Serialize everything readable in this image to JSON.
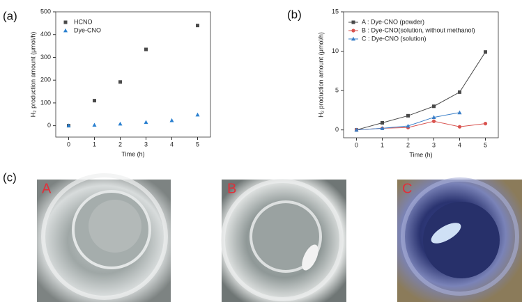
{
  "panel_labels": [
    "(a)",
    "(b)",
    "(c)"
  ],
  "photos": [
    {
      "label": "A"
    },
    {
      "label": "B"
    },
    {
      "label": "C"
    }
  ],
  "chart_data": [
    {
      "type": "scatter",
      "xlabel": "Time (h)",
      "ylabel": "H₂ production amount (μmol/h)",
      "x": [
        0,
        1,
        2,
        3,
        4,
        5
      ],
      "xlim": [
        -0.5,
        5.5
      ],
      "xticks": [
        0,
        1,
        2,
        3,
        4,
        5
      ],
      "ylim": [
        -50,
        500
      ],
      "yticks": [
        0,
        100,
        200,
        300,
        400,
        500
      ],
      "legend": "upper left",
      "series": [
        {
          "name": "HCNO",
          "color": "#4a4a4a",
          "marker": "square",
          "values": [
            0,
            110,
            192,
            335,
            null,
            440
          ]
        },
        {
          "name": "Dye-CNO",
          "color": "#2a80d0",
          "marker": "triangle",
          "values": [
            0,
            3,
            8,
            15,
            23,
            48
          ]
        }
      ]
    },
    {
      "type": "line",
      "xlabel": "Time (h)",
      "ylabel": "H₂ production amount (μmol/h)",
      "x": [
        0,
        1,
        2,
        3,
        4,
        5
      ],
      "xlim": [
        -0.5,
        5.5
      ],
      "xticks": [
        0,
        1,
        2,
        3,
        4,
        5
      ],
      "ylim": [
        -1,
        15
      ],
      "yticks": [
        0,
        5,
        10,
        15
      ],
      "legend": "upper left",
      "series": [
        {
          "name": "A : Dye-CNO (powder)",
          "color": "#4a4a4a",
          "marker": "square",
          "values": [
            0,
            0.9,
            1.8,
            3.0,
            4.8,
            9.9
          ]
        },
        {
          "name": "B : Dye-CNO(solution, without methanol)",
          "color": "#d9534f",
          "marker": "circle",
          "values": [
            0,
            0.2,
            0.3,
            1.1,
            0.4,
            0.8
          ]
        },
        {
          "name": "C : Dye-CNO (solution)",
          "color": "#3a7fc8",
          "marker": "triangle",
          "values": [
            0,
            0.2,
            0.5,
            1.6,
            2.2,
            null
          ]
        }
      ]
    }
  ]
}
